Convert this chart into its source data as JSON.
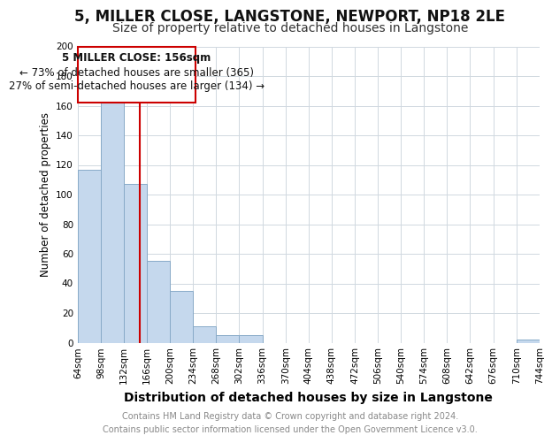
{
  "title": "5, MILLER CLOSE, LANGSTONE, NEWPORT, NP18 2LE",
  "subtitle": "Size of property relative to detached houses in Langstone",
  "xlabel": "Distribution of detached houses by size in Langstone",
  "ylabel": "Number of detached properties",
  "bar_color": "#c5d8ed",
  "bar_edge_color": "#88aac8",
  "background_color": "#ffffff",
  "grid_color": "#d0d8e0",
  "annotation_box_color": "#ffffff",
  "annotation_box_edge": "#cc0000",
  "vline_color": "#cc0000",
  "vline_x": 156,
  "bin_edges": [
    64,
    98,
    132,
    166,
    200,
    234,
    268,
    302,
    336,
    370,
    404,
    438,
    472,
    506,
    540,
    574,
    608,
    642,
    676,
    710,
    744
  ],
  "bin_labels": [
    "64sqm",
    "98sqm",
    "132sqm",
    "166sqm",
    "200sqm",
    "234sqm",
    "268sqm",
    "302sqm",
    "336sqm",
    "370sqm",
    "404sqm",
    "438sqm",
    "472sqm",
    "506sqm",
    "540sqm",
    "574sqm",
    "608sqm",
    "642sqm",
    "676sqm",
    "710sqm",
    "744sqm"
  ],
  "counts": [
    117,
    164,
    107,
    55,
    35,
    11,
    5,
    5,
    0,
    0,
    0,
    0,
    0,
    0,
    0,
    0,
    0,
    0,
    0,
    2
  ],
  "ylim": [
    0,
    200
  ],
  "yticks": [
    0,
    20,
    40,
    60,
    80,
    100,
    120,
    140,
    160,
    180,
    200
  ],
  "annotation_title": "5 MILLER CLOSE: 156sqm",
  "annotation_line1": "← 73% of detached houses are smaller (365)",
  "annotation_line2": "27% of semi-detached houses are larger (134) →",
  "footer_line1": "Contains HM Land Registry data © Crown copyright and database right 2024.",
  "footer_line2": "Contains public sector information licensed under the Open Government Licence v3.0.",
  "title_fontsize": 12,
  "subtitle_fontsize": 10,
  "xlabel_fontsize": 10,
  "ylabel_fontsize": 8.5,
  "tick_fontsize": 7.5,
  "footer_fontsize": 7,
  "annotation_fontsize": 8.5
}
